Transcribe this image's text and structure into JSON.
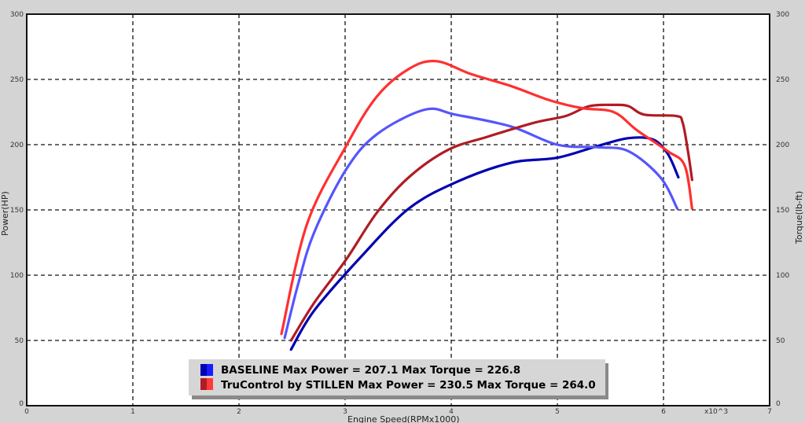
{
  "chart_data": {
    "type": "line",
    "title": "",
    "xlabel": "Engine Speed(RPMx1000)",
    "x_multiplier_label": "x10^3",
    "ylabel": "Power(HP)",
    "y2label": "Torque(lb-ft)",
    "xlim": [
      0,
      7
    ],
    "ylim": [
      0,
      300
    ],
    "y2lim": [
      0,
      300
    ],
    "x_ticks": [
      "0",
      "1",
      "2",
      "3",
      "4",
      "5",
      "6",
      "7"
    ],
    "y_ticks": [
      "0",
      "50",
      "100",
      "150",
      "200",
      "250",
      "300"
    ],
    "y2_ticks": [
      "0",
      "50",
      "100",
      "150",
      "200",
      "250",
      "300"
    ],
    "grid": true,
    "legend_position": "bottom-center",
    "legend": [
      {
        "label": "BASELINE Max Power = 207.1 Max Torque = 226.8",
        "colors": [
          "#0000b4",
          "#1a1aff"
        ]
      },
      {
        "label": "TruControl by STILLEN Max Power = 230.5 Max Torque = 264.0",
        "colors": [
          "#b01c24",
          "#ff3a3a"
        ]
      }
    ],
    "series": [
      {
        "name": "BASELINE Power",
        "color": "#0000b0",
        "x": [
          2.49,
          2.71,
          3.16,
          3.6,
          4.04,
          4.56,
          5.0,
          5.38,
          5.67,
          5.9,
          6.04,
          6.14
        ],
        "y": [
          43,
          73,
          115,
          151,
          171,
          186,
          190,
          199,
          205,
          204,
          193,
          175
        ]
      },
      {
        "name": "BASELINE Torque",
        "color": "#5555ff",
        "x": [
          2.43,
          2.56,
          2.71,
          3.01,
          3.3,
          3.75,
          4.04,
          4.56,
          5.0,
          5.38,
          5.67,
          5.97,
          6.13
        ],
        "y": [
          52,
          94,
          133,
          181,
          208,
          226.8,
          223,
          214,
          200,
          198,
          195,
          175,
          151
        ]
      },
      {
        "name": "TruControl by STILLEN Power",
        "color": "#b01c24",
        "x": [
          2.49,
          2.71,
          3.01,
          3.3,
          3.6,
          3.97,
          4.34,
          4.79,
          5.08,
          5.3,
          5.53,
          5.67,
          5.82,
          6.12,
          6.18,
          6.23,
          6.27
        ],
        "y": [
          50,
          79,
          112,
          148,
          175,
          196,
          206,
          217,
          222,
          229.5,
          230.5,
          229.5,
          223,
          222,
          217,
          195,
          173
        ]
      },
      {
        "name": "TruControl by STILLEN Torque",
        "color": "#ff3030",
        "x": [
          2.4,
          2.64,
          3.01,
          3.3,
          3.6,
          3.86,
          4.19,
          4.56,
          4.93,
          5.23,
          5.53,
          5.75,
          6.04,
          6.2,
          6.27
        ],
        "y": [
          55,
          139,
          199,
          237,
          258,
          264,
          254,
          245,
          234,
          228,
          225,
          211,
          195,
          184,
          151
        ]
      }
    ]
  }
}
